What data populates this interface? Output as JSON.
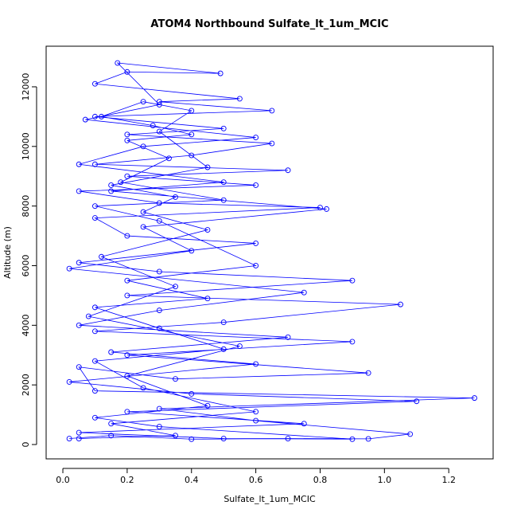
{
  "chart_data": {
    "type": "line",
    "title": "ATOM4 Northbound Sulfate_lt_1um_MCIC",
    "x_label": "Sulfate_lt_1um_MCIC",
    "y_label": "Altitude (m)",
    "markers": true,
    "x": [
      0.02,
      0.15,
      0.4,
      0.7,
      0.95,
      1.08,
      0.6,
      0.3,
      1.28,
      0.1,
      0.05,
      0.35,
      0.95,
      0.2,
      0.9,
      0.1,
      0.5,
      1.05,
      0.2,
      0.9,
      0.3,
      0.05,
      0.6,
      0.2,
      0.1,
      0.8,
      0.3,
      0.05,
      0.6,
      0.2,
      0.7,
      0.1,
      0.4,
      0.65,
      0.2,
      0.5,
      0.1,
      0.65,
      0.3,
      0.55,
      0.1,
      0.2,
      0.49,
      0.17,
      0.3,
      0.07,
      0.6,
      0.25,
      0.05,
      0.5,
      0.15,
      0.82,
      0.25,
      0.4,
      0.02,
      0.75,
      0.3,
      0.05,
      0.7,
      0.15,
      0.6,
      0.02,
      0.4,
      1.1,
      0.2,
      0.75,
      0.05,
      0.5,
      0.9,
      0.3,
      0.1,
      0.45,
      0.2,
      0.55,
      0.08,
      0.35,
      0.12,
      0.45,
      0.25,
      0.35,
      0.15,
      0.45,
      0.3,
      0.4,
      0.25,
      0.12,
      0.28,
      0.4,
      0.2,
      0.33,
      0.18,
      0.5,
      0.1,
      0.3,
      0.6,
      0.2,
      0.45,
      0.1,
      0.3,
      0.5,
      0.1,
      0.25,
      0.6,
      0.15,
      0.35,
      0.05
    ],
    "series": [
      {
        "name": "Altitude (m)",
        "color": "#0000ff",
        "values": [
          200,
          300,
          180,
          200,
          190,
          350,
          800,
          1200,
          1560,
          1800,
          2600,
          2200,
          2400,
          3000,
          3450,
          3800,
          4100,
          4700,
          5000,
          5500,
          5800,
          6100,
          6750,
          7000,
          7600,
          7950,
          8100,
          8500,
          8700,
          9000,
          9200,
          9400,
          9700,
          10100,
          10400,
          10600,
          11000,
          11200,
          11500,
          11600,
          12100,
          12500,
          12450,
          12800,
          11400,
          10900,
          10300,
          10000,
          9400,
          8800,
          8500,
          7900,
          7300,
          6500,
          5900,
          5100,
          4500,
          4000,
          3600,
          3100,
          2700,
          2100,
          1700,
          1450,
          1100,
          700,
          400,
          200,
          180,
          600,
          900,
          1300,
          2300,
          3300,
          4300,
          5300,
          6300,
          7200,
          7800,
          8300,
          8700,
          9300,
          10500,
          11200,
          11500,
          11000,
          10700,
          10400,
          10200,
          9600,
          8800,
          8200,
          8000,
          7500,
          6000,
          5500,
          4900,
          4600,
          3900,
          3200,
          2800,
          1900,
          1100,
          700,
          300,
          200
        ]
      }
    ],
    "xlim": [
      -0.052,
      1.338
    ],
    "ylim": [
      -481,
      13362
    ],
    "xticks": [
      {
        "value": 0,
        "label": "0.0"
      },
      0.2,
      0.4,
      0.6,
      0.8,
      {
        "value": 1,
        "label": "1.0"
      },
      1.2
    ],
    "yticks": [
      0,
      2000,
      4000,
      6000,
      8000,
      10000,
      12000
    ]
  }
}
